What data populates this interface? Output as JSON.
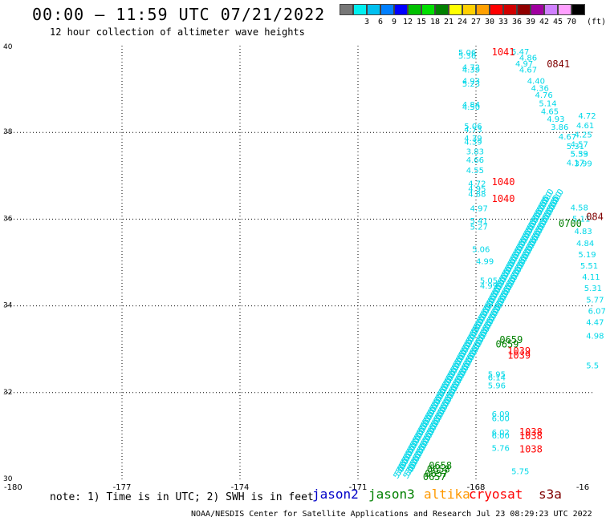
{
  "header": {
    "title": "00:00 – 11:59 UTC 07/21/2022",
    "subtitle": "12 hour collection of altimeter wave heights"
  },
  "scale": {
    "unit": "(ft)",
    "levels": [
      {
        "label": "",
        "color": "#777777"
      },
      {
        "label": "3",
        "color": "#00f0f0"
      },
      {
        "label": "6",
        "color": "#00c0f0"
      },
      {
        "label": "9",
        "color": "#0080ff"
      },
      {
        "label": "12",
        "color": "#0000ff"
      },
      {
        "label": "15",
        "color": "#00c000"
      },
      {
        "label": "18",
        "color": "#00e000"
      },
      {
        "label": "21",
        "color": "#008000"
      },
      {
        "label": "24",
        "color": "#ffff00"
      },
      {
        "label": "27",
        "color": "#ffd000"
      },
      {
        "label": "30",
        "color": "#ffa000"
      },
      {
        "label": "33",
        "color": "#ff0000"
      },
      {
        "label": "36",
        "color": "#d00000"
      },
      {
        "label": "39",
        "color": "#900000"
      },
      {
        "label": "42",
        "color": "#a000a0"
      },
      {
        "label": "45",
        "color": "#d080ff"
      },
      {
        "label": "70",
        "color": "#ffa0ff"
      },
      {
        "label": "",
        "color": "#000000"
      }
    ]
  },
  "map": {
    "lon_range": [
      -180,
      -165
    ],
    "lat_range": [
      30,
      40
    ],
    "lon_ticks": [
      "-180",
      "-177",
      "-174",
      "-171",
      "-168",
      "-16"
    ],
    "lat_ticks": [
      "40",
      "38",
      "36",
      "34",
      "32",
      "30"
    ],
    "track_times": [
      {
        "text": "1041",
        "color": "#ff0000",
        "lon": -167.6,
        "lat": 39.78
      },
      {
        "text": "0841",
        "color": "#800000",
        "lon": -166.2,
        "lat": 39.5
      },
      {
        "text": "1040",
        "color": "#ff0000",
        "lon": -167.6,
        "lat": 36.78
      },
      {
        "text": "1040",
        "color": "#ff0000",
        "lon": -167.6,
        "lat": 36.4
      },
      {
        "text": "084",
        "color": "#800000",
        "lon": -165.2,
        "lat": 35.98
      },
      {
        "text": "0700",
        "color": "#008000",
        "lon": -165.9,
        "lat": 35.82
      },
      {
        "text": "0659",
        "color": "#008000",
        "lon": -167.4,
        "lat": 33.14
      },
      {
        "text": "0659",
        "color": "#008000",
        "lon": -167.5,
        "lat": 33.04
      },
      {
        "text": "1039",
        "color": "#ff0000",
        "lon": -167.2,
        "lat": 32.88
      },
      {
        "text": "1039",
        "color": "#ff0000",
        "lon": -167.2,
        "lat": 32.78
      },
      {
        "text": "1038",
        "color": "#ff0000",
        "lon": -166.9,
        "lat": 31.02
      },
      {
        "text": "1038",
        "color": "#ff0000",
        "lon": -166.9,
        "lat": 30.92
      },
      {
        "text": "1038",
        "color": "#ff0000",
        "lon": -166.9,
        "lat": 30.62
      },
      {
        "text": "0658",
        "color": "#008000",
        "lon": -169.2,
        "lat": 30.24
      },
      {
        "text": "0658",
        "color": "#008000",
        "lon": -169.25,
        "lat": 30.16
      },
      {
        "text": "0657",
        "color": "#008000",
        "lon": -169.3,
        "lat": 30.06
      },
      {
        "text": "0657",
        "color": "#008000",
        "lon": -169.35,
        "lat": 29.98
      }
    ],
    "wave_labels": [
      {
        "text": "5.06",
        "lon": -168.45,
        "lat": 39.78
      },
      {
        "text": "5.36",
        "lon": -168.45,
        "lat": 39.7
      },
      {
        "text": "5.47",
        "lon": -167.1,
        "lat": 39.8
      },
      {
        "text": "4.86",
        "lon": -166.9,
        "lat": 39.66
      },
      {
        "text": "4.97",
        "lon": -167.0,
        "lat": 39.52
      },
      {
        "text": "4.72",
        "lon": -168.35,
        "lat": 39.44
      },
      {
        "text": "4.39",
        "lon": -168.35,
        "lat": 39.38
      },
      {
        "text": "4.67",
        "lon": -166.9,
        "lat": 39.38
      },
      {
        "text": "4.93",
        "lon": -168.35,
        "lat": 39.12
      },
      {
        "text": "5.23",
        "lon": -168.35,
        "lat": 39.06
      },
      {
        "text": "4.40",
        "lon": -166.7,
        "lat": 39.12
      },
      {
        "text": "4.36",
        "lon": -166.6,
        "lat": 38.96
      },
      {
        "text": "4.76",
        "lon": -166.5,
        "lat": 38.8
      },
      {
        "text": "4.84",
        "lon": -168.35,
        "lat": 38.58
      },
      {
        "text": "4.50",
        "lon": -168.35,
        "lat": 38.52
      },
      {
        "text": "5.14",
        "lon": -166.4,
        "lat": 38.6
      },
      {
        "text": "4.65",
        "lon": -166.35,
        "lat": 38.42
      },
      {
        "text": "5.06",
        "lon": -168.3,
        "lat": 38.08
      },
      {
        "text": "4.73",
        "lon": -168.3,
        "lat": 38.0
      },
      {
        "text": "4.93",
        "lon": -166.2,
        "lat": 38.24
      },
      {
        "text": "3.86",
        "lon": -166.1,
        "lat": 38.06
      },
      {
        "text": "4.39",
        "lon": -168.3,
        "lat": 37.8
      },
      {
        "text": "4.39",
        "lon": -168.3,
        "lat": 37.72
      },
      {
        "text": "4.67",
        "lon": -165.9,
        "lat": 37.84
      },
      {
        "text": "3.83",
        "lon": -168.25,
        "lat": 37.5
      },
      {
        "text": "4.66",
        "lon": -168.25,
        "lat": 37.3
      },
      {
        "text": "5.31",
        "lon": -165.7,
        "lat": 37.62
      },
      {
        "text": "5.59",
        "lon": -165.6,
        "lat": 37.44
      },
      {
        "text": "4.55",
        "lon": -168.25,
        "lat": 37.06
      },
      {
        "text": "3.99",
        "lon": -165.5,
        "lat": 37.22
      },
      {
        "text": "4.72",
        "lon": -168.2,
        "lat": 36.76
      },
      {
        "text": "4.95",
        "lon": -168.2,
        "lat": 36.64
      },
      {
        "text": "4.88",
        "lon": -168.2,
        "lat": 36.52
      },
      {
        "text": "4.97",
        "lon": -168.15,
        "lat": 36.18
      },
      {
        "text": "5.41",
        "lon": -168.15,
        "lat": 35.9
      },
      {
        "text": "5.27",
        "lon": -168.15,
        "lat": 35.76
      },
      {
        "text": "5.06",
        "lon": -168.1,
        "lat": 35.24
      },
      {
        "text": "4.99",
        "lon": -168.0,
        "lat": 34.96
      },
      {
        "text": "4.58",
        "lon": -165.6,
        "lat": 36.2
      },
      {
        "text": "5.11",
        "lon": -165.55,
        "lat": 35.94
      },
      {
        "text": "4.83",
        "lon": -165.5,
        "lat": 35.66
      },
      {
        "text": "4.84",
        "lon": -165.45,
        "lat": 35.38
      },
      {
        "text": "5.19",
        "lon": -165.4,
        "lat": 35.12
      },
      {
        "text": "5.51",
        "lon": -165.35,
        "lat": 34.86
      },
      {
        "text": "4.11",
        "lon": -165.3,
        "lat": 34.6
      },
      {
        "text": "5.31",
        "lon": -165.25,
        "lat": 34.34
      },
      {
        "text": "5.77",
        "lon": -165.2,
        "lat": 34.08
      },
      {
        "text": "6.07",
        "lon": -165.15,
        "lat": 33.82
      },
      {
        "text": "5.33",
        "lon": -165.6,
        "lat": 37.44
      },
      {
        "text": "4.57",
        "lon": -165.6,
        "lat": 37.66
      },
      {
        "text": "4.25",
        "lon": -165.5,
        "lat": 37.88
      },
      {
        "text": "4.61",
        "lon": -165.45,
        "lat": 38.1
      },
      {
        "text": "4.72",
        "lon": -165.4,
        "lat": 38.32
      },
      {
        "text": "4.17",
        "lon": -165.7,
        "lat": 37.24
      },
      {
        "text": "5.05",
        "lon": -167.9,
        "lat": 34.52
      },
      {
        "text": "4.99",
        "lon": -167.9,
        "lat": 34.4
      },
      {
        "text": "5.95",
        "lon": -167.7,
        "lat": 32.36
      },
      {
        "text": "6.14",
        "lon": -167.7,
        "lat": 32.28
      },
      {
        "text": "5.96",
        "lon": -167.7,
        "lat": 32.1
      },
      {
        "text": "6.09",
        "lon": -167.6,
        "lat": 31.44
      },
      {
        "text": "6.00",
        "lon": -167.6,
        "lat": 31.34
      },
      {
        "text": "6.02",
        "lon": -167.6,
        "lat": 31.02
      },
      {
        "text": "6.00",
        "lon": -167.6,
        "lat": 30.94
      },
      {
        "text": "5.76",
        "lon": -167.6,
        "lat": 30.66
      },
      {
        "text": "5.75",
        "lon": -167.1,
        "lat": 30.12
      },
      {
        "text": "5.5",
        "lon": -165.2,
        "lat": 32.56
      },
      {
        "text": "4.98",
        "lon": -165.2,
        "lat": 33.24
      },
      {
        "text": "4.47",
        "lon": -165.2,
        "lat": 33.56
      }
    ],
    "diag_tracks": [
      {
        "lon1": -170.0,
        "lat1": 30.0,
        "lon2": -166.2,
        "lat2": 36.4,
        "step": 0.06
      },
      {
        "lon1": -169.75,
        "lat1": 30.0,
        "lon2": -165.95,
        "lat2": 36.4,
        "step": 0.06
      }
    ]
  },
  "footer": {
    "note": "note:  1) Time is in UTC;  2) SWH is in feet",
    "satellites": [
      {
        "name": "jason2",
        "color": "#0000c8"
      },
      {
        "name": "jason3",
        "color": "#008000"
      },
      {
        "name": "altika",
        "color": "#ff9900"
      },
      {
        "name": "cryosat",
        "color": "#ff0000"
      },
      {
        "name": "s3a",
        "color": "#800000"
      }
    ],
    "credit": "NOAA/NESDIS Center for Satellite Applications and Research    Jul 23 08:29:23 UTC 2022"
  }
}
